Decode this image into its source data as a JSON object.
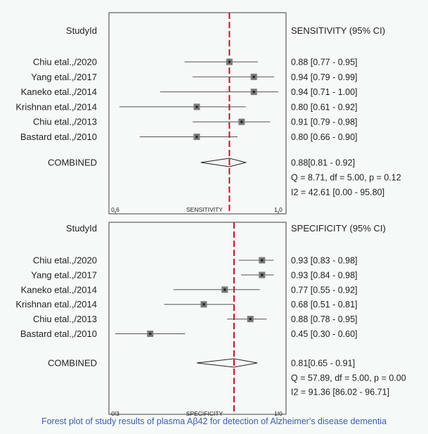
{
  "caption": "Forest plot of study results of plasma Aβ42 for detection of Alzheimer's disease dementia",
  "chart_data": [
    {
      "type": "forest",
      "study_header": "StudyId",
      "stat_header": "SENSITIVITY (95% CI)",
      "axis_label": "SENSITIVITY",
      "xlim": [
        0.6,
        1.0
      ],
      "ticks": [
        {
          "value": 0.6,
          "label": "0.6"
        },
        {
          "value": 1.0,
          "label": "1.0"
        }
      ],
      "reference_line": 0.88,
      "studies": [
        {
          "name": "Chiu etal.,/2020",
          "estimate": 0.88,
          "lower": 0.77,
          "upper": 0.95,
          "label": "0.88 [0.77 - 0.95]"
        },
        {
          "name": "Yang etal.,/2017",
          "estimate": 0.94,
          "lower": 0.79,
          "upper": 0.99,
          "label": "0.94 [0.79 - 0.99]"
        },
        {
          "name": "Kaneko etal.,/2014",
          "estimate": 0.94,
          "lower": 0.71,
          "upper": 1.0,
          "label": "0.94 [0.71 - 1.00]"
        },
        {
          "name": "Krishnan etal.,/2014",
          "estimate": 0.8,
          "lower": 0.61,
          "upper": 0.92,
          "label": "0.80 [0.61 - 0.92]"
        },
        {
          "name": "Chiu etal.,/2013",
          "estimate": 0.91,
          "lower": 0.79,
          "upper": 0.98,
          "label": "0.91 [0.79 - 0.98]"
        },
        {
          "name": "Bastard etal.,/2010",
          "estimate": 0.8,
          "lower": 0.66,
          "upper": 0.9,
          "label": "0.80 [0.66 - 0.90]"
        }
      ],
      "combined": {
        "name": "COMBINED",
        "estimate": 0.88,
        "lower": 0.81,
        "upper": 0.92,
        "label": "0.88[0.81 - 0.92]"
      },
      "heterogeneity": [
        "Q =  8.71, df = 5.00, p =  0.12",
        "I2 = 42.61 [0.00 - 95.80]"
      ]
    },
    {
      "type": "forest",
      "study_header": "StudyId",
      "stat_header": "SPECIFICITY (95% CI)",
      "axis_label": "SPECIFICITY",
      "xlim": [
        0.3,
        1.0
      ],
      "ticks": [
        {
          "value": 0.3,
          "label": "0.3"
        },
        {
          "value": 1.0,
          "label": "1.0"
        }
      ],
      "reference_line": 0.81,
      "studies": [
        {
          "name": "Chiu etal.,/2020",
          "estimate": 0.93,
          "lower": 0.83,
          "upper": 0.98,
          "label": "0.93 [0.83 - 0.98]"
        },
        {
          "name": "Yang etal.,/2017",
          "estimate": 0.93,
          "lower": 0.84,
          "upper": 0.98,
          "label": "0.93 [0.84 - 0.98]"
        },
        {
          "name": "Kaneko etal.,/2014",
          "estimate": 0.77,
          "lower": 0.55,
          "upper": 0.92,
          "label": "0.77 [0.55 - 0.92]"
        },
        {
          "name": "Krishnan etal.,/2014",
          "estimate": 0.68,
          "lower": 0.51,
          "upper": 0.81,
          "label": "0.68 [0.51 - 0.81]"
        },
        {
          "name": "Chiu etal.,/2013",
          "estimate": 0.88,
          "lower": 0.78,
          "upper": 0.95,
          "label": "0.88 [0.78 - 0.95]"
        },
        {
          "name": "Bastard etal.,/2010",
          "estimate": 0.45,
          "lower": 0.3,
          "upper": 0.6,
          "label": "0.45 [0.30 - 0.60]"
        }
      ],
      "combined": {
        "name": "COMBINED",
        "estimate": 0.81,
        "lower": 0.65,
        "upper": 0.91,
        "label": "0.81[0.65 - 0.91]"
      },
      "heterogeneity": [
        "Q = 57.89, df = 5.00, p =  0.00",
        "I2 = 91.36 [86.02 - 96.71]"
      ]
    }
  ],
  "colors": {
    "reference_line": "#c8102e",
    "marker": "#7a7a7a",
    "marker_inner": "#222222",
    "ci_line": "#555555",
    "frame": "#444444",
    "caption": "#3f5ea8"
  }
}
